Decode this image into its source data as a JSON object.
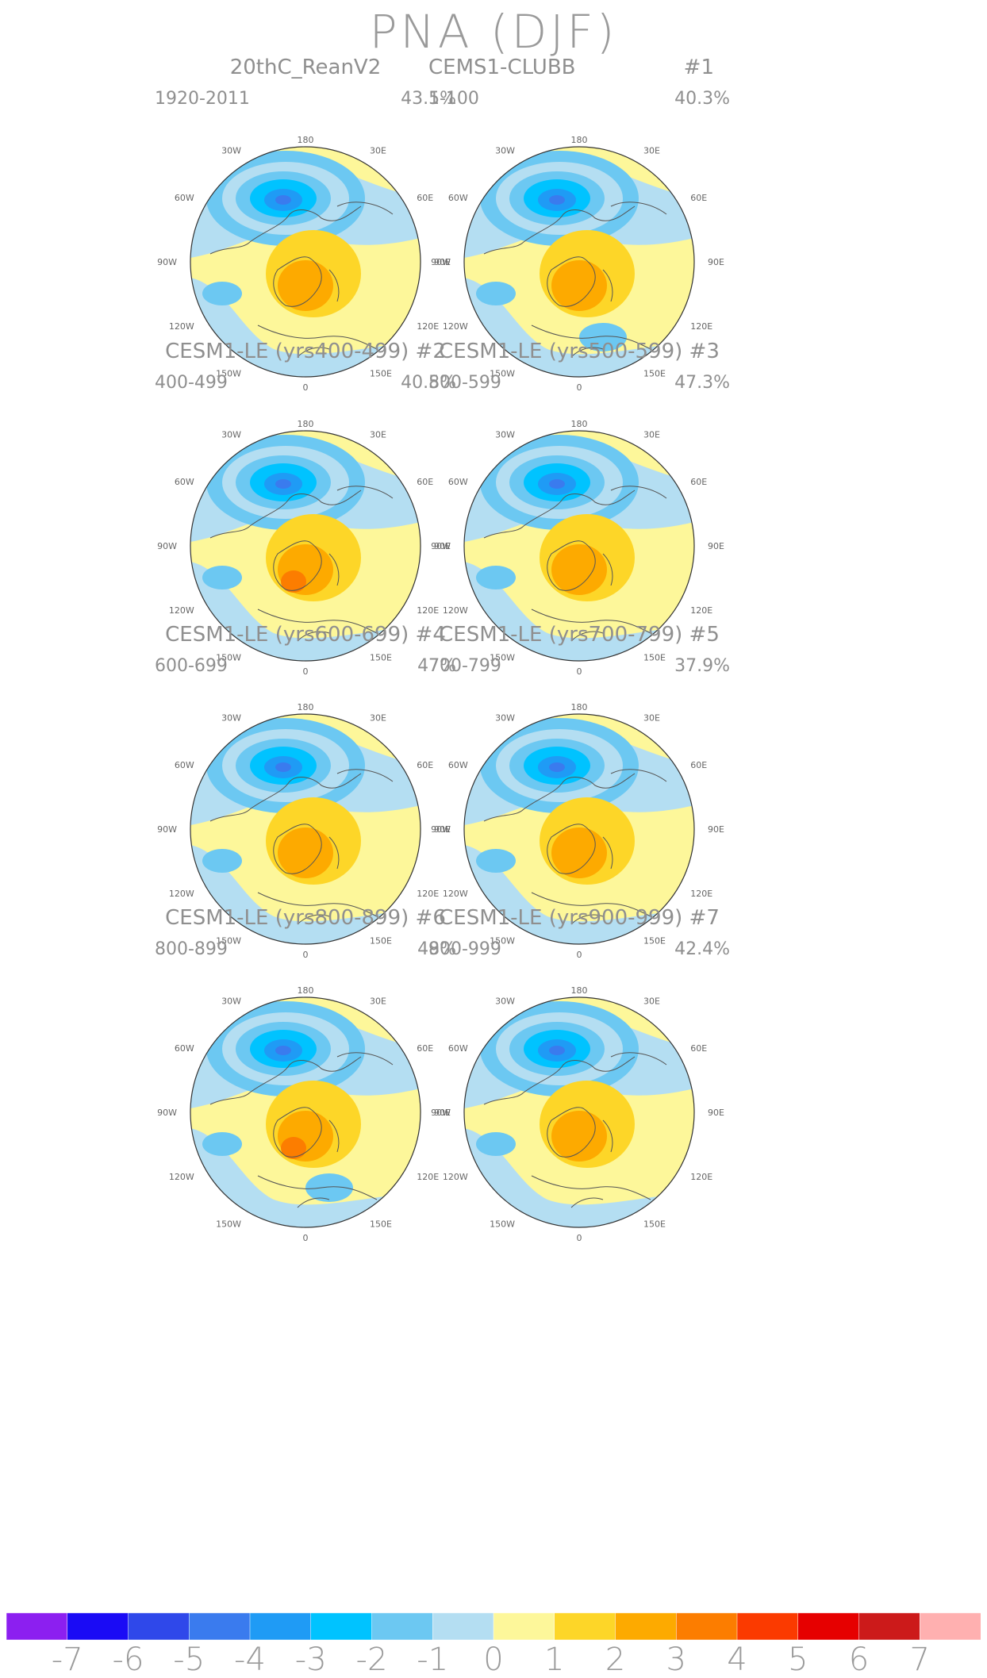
{
  "figure": {
    "title": "PNA (DJF)"
  },
  "panels": [
    {
      "title": "20thC_ReanV2",
      "run": "",
      "years": "1920-2011",
      "variance": "43.5%"
    },
    {
      "title": "CEMS1-CLUBB",
      "run": "#1",
      "years": "1-100",
      "variance": "40.3%"
    },
    {
      "title": "CESM1-LE (yrs400-499) #2",
      "run": "",
      "years": "400-499",
      "variance": "40.8%"
    },
    {
      "title": "CESM1-LE (yrs500-599) #3",
      "run": "",
      "years": "500-599",
      "variance": "47.3%"
    },
    {
      "title": "CESM1-LE (yrs600-699) #4",
      "run": "",
      "years": "600-699",
      "variance": "47%"
    },
    {
      "title": "CESM1-LE (yrs700-799) #5",
      "run": "",
      "years": "700-799",
      "variance": "37.9%"
    },
    {
      "title": "CESM1-LE (yrs800-899) #6",
      "run": "",
      "years": "800-899",
      "variance": "48%"
    },
    {
      "title": "CESM1-LE (yrs900-999) #7",
      "run": "",
      "years": "900-999",
      "variance": "42.4%"
    }
  ],
  "longitude_labels": {
    "top": "180",
    "bottom": "0",
    "left": [
      "150W",
      "120W",
      "90W",
      "60W",
      "30W"
    ],
    "right": [
      "150E",
      "120E",
      "90E",
      "60E",
      "30E"
    ]
  },
  "colorbar": {
    "labels": [
      "-7",
      "-6",
      "-5",
      "-4",
      "-3",
      "-2",
      "-1",
      "0",
      "1",
      "2",
      "3",
      "4",
      "5",
      "6",
      "7"
    ],
    "colors": [
      "#8c1ff0",
      "#1a0bf5",
      "#2f48ea",
      "#3a7bee",
      "#1f9bf5",
      "#00c3ff",
      "#6cc8f2",
      "#b4def2",
      "#fdf79a",
      "#fdd628",
      "#fdaa00",
      "#fc7d00",
      "#fb3a00",
      "#e60000",
      "#cc1a1a",
      "#ffb0b0"
    ]
  }
}
